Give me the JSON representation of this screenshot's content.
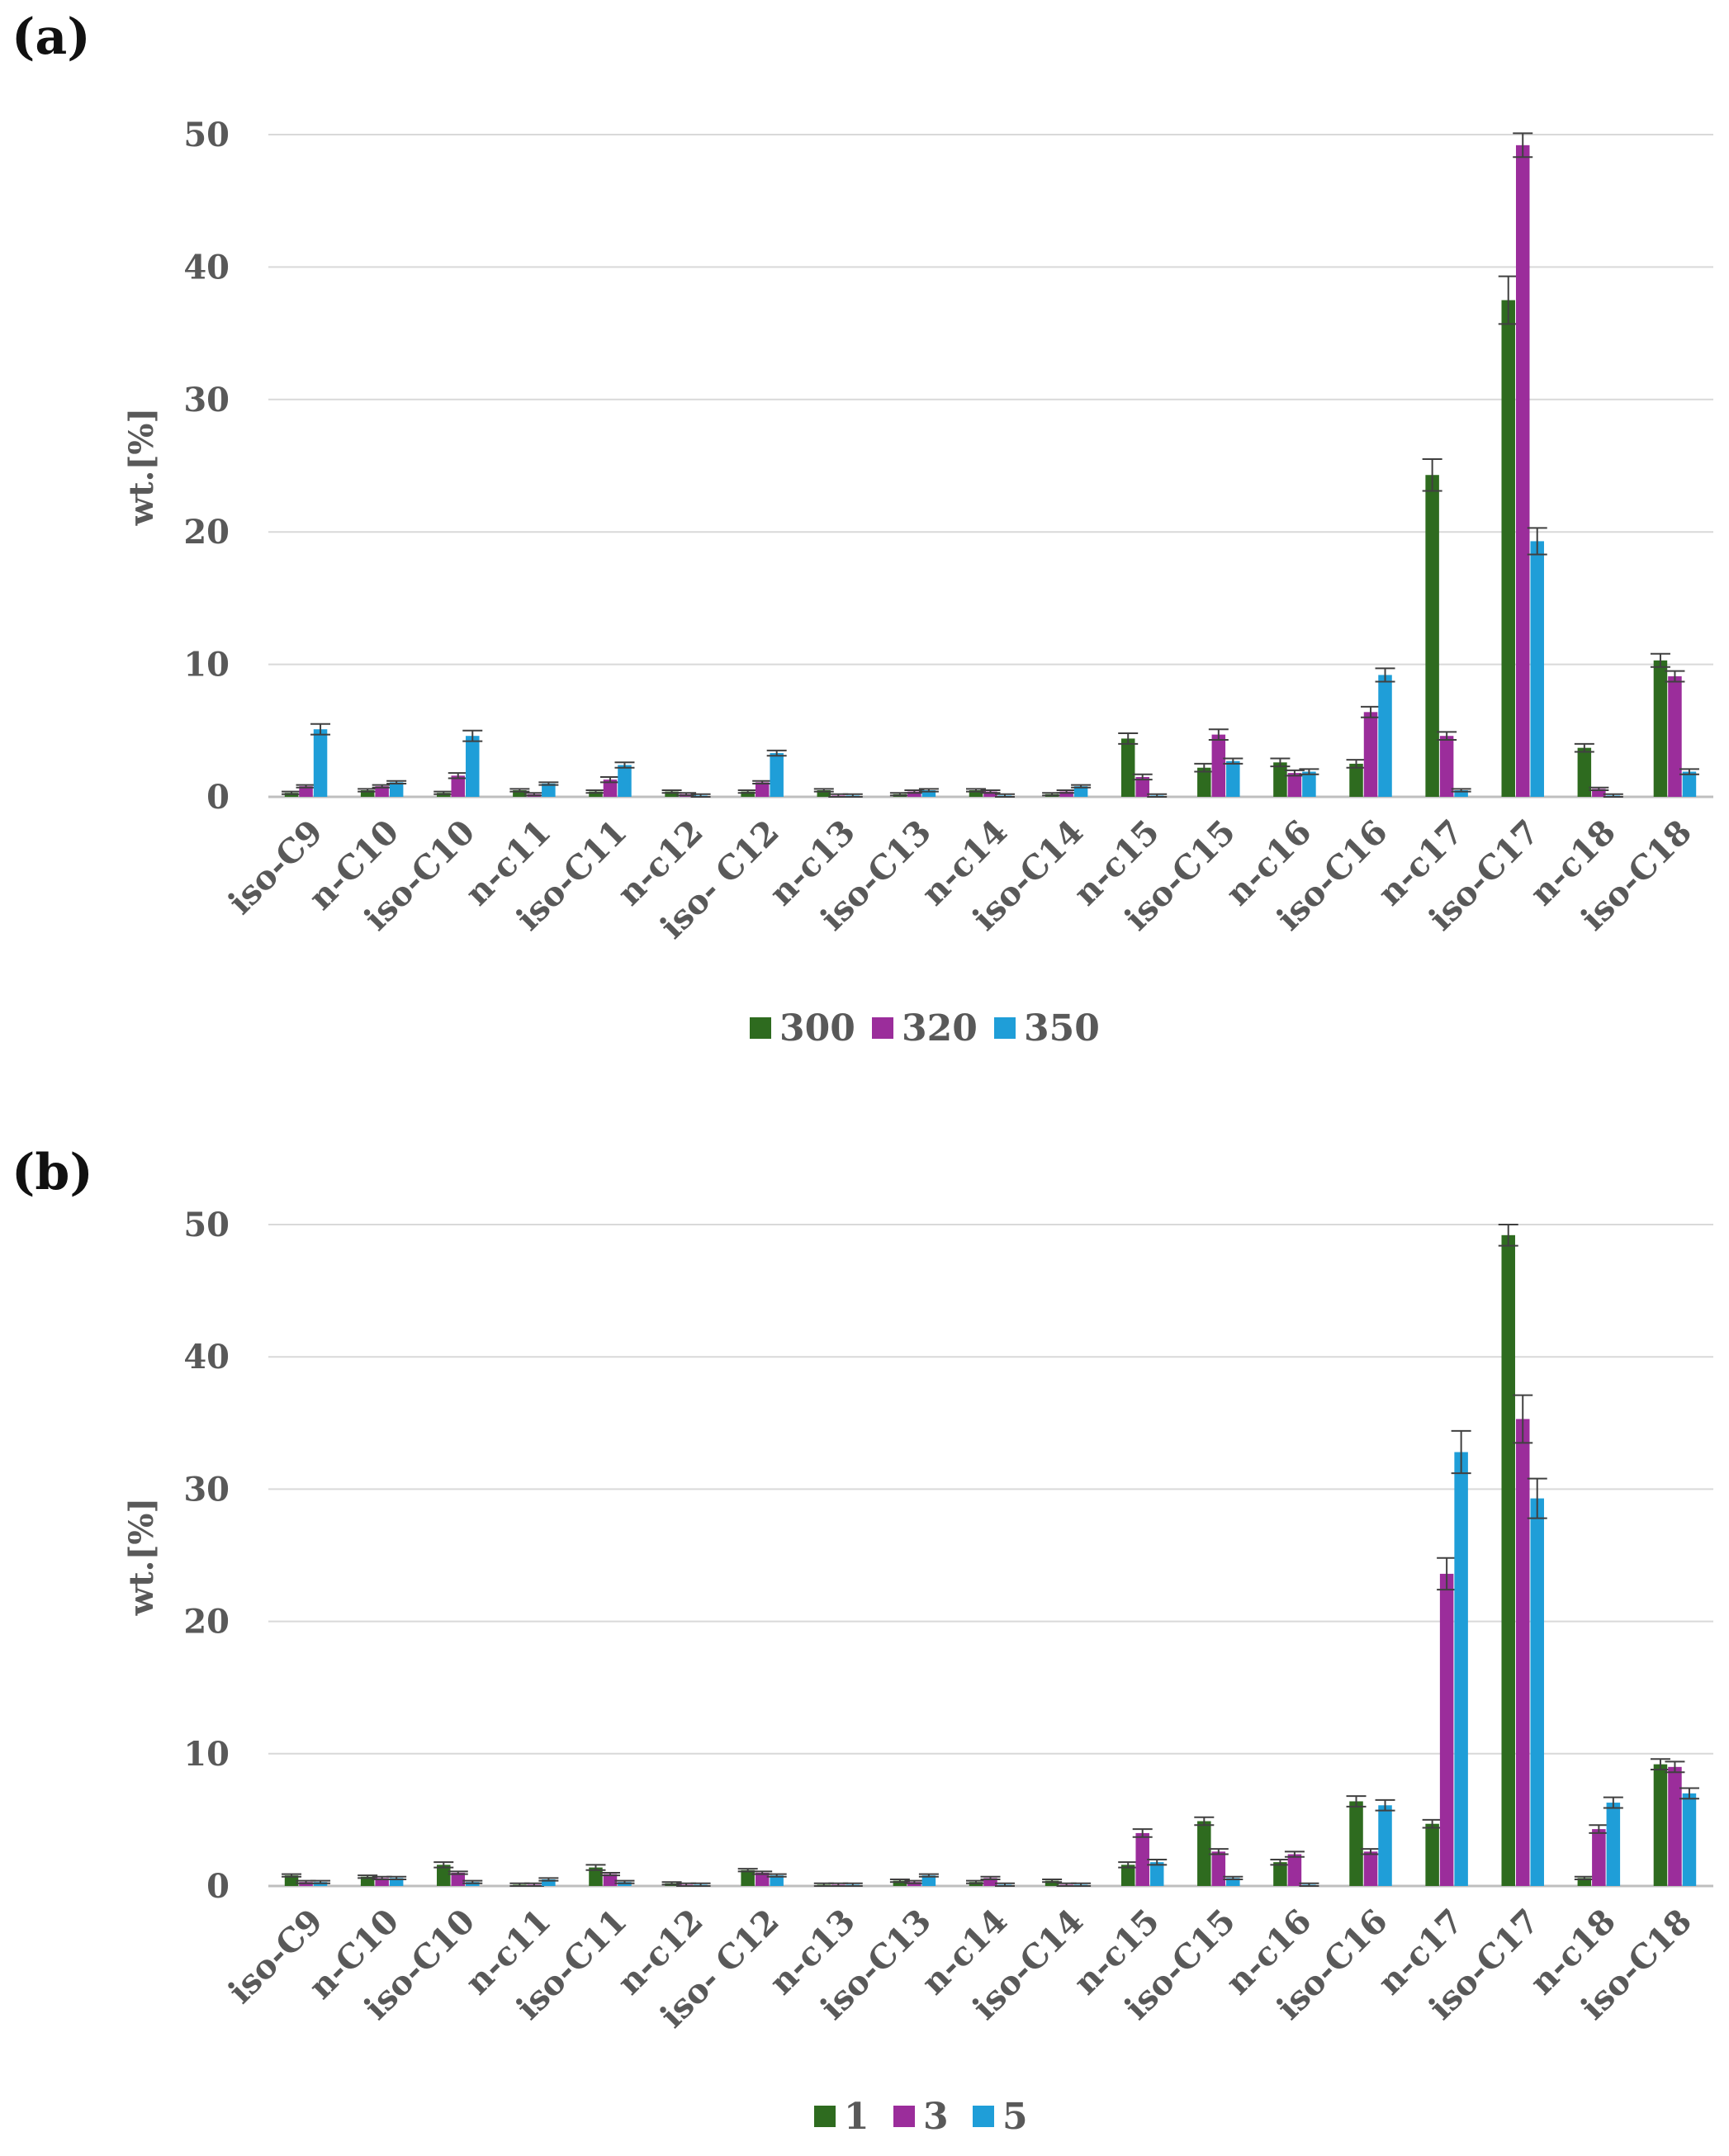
{
  "panels": [
    {
      "label": "(a)"
    },
    {
      "label": "(b)"
    }
  ],
  "chart_data": [
    {
      "type": "bar",
      "title": "",
      "xlabel": "",
      "ylabel": "wt.[%]",
      "ylim": [
        0,
        50
      ],
      "yticks": [
        0,
        10,
        20,
        30,
        40,
        50
      ],
      "grid": true,
      "legend": "bottom-center",
      "categories": [
        "iso-C9",
        "n-C10",
        "iso-C10",
        "n-c11",
        "iso-C11",
        "n-c12",
        "iso- C12",
        "n-c13",
        "iso-C13",
        "n-c14",
        "iso-C14",
        "n-c15",
        "iso-C15",
        "n-c16",
        "iso-C16",
        "n-c17",
        "iso-C17",
        "n-c18",
        "iso-C18"
      ],
      "series": [
        {
          "name": "300",
          "color": "#2e6b1f",
          "values": [
            0.3,
            0.5,
            0.3,
            0.5,
            0.4,
            0.4,
            0.4,
            0.5,
            0.2,
            0.5,
            0.2,
            4.4,
            2.2,
            2.6,
            2.5,
            24.3,
            37.5,
            3.7,
            10.3
          ],
          "errors": [
            0.1,
            0.1,
            0.1,
            0.1,
            0.1,
            0.1,
            0.1,
            0.1,
            0.1,
            0.1,
            0.1,
            0.4,
            0.3,
            0.3,
            0.3,
            1.2,
            1.8,
            0.3,
            0.5
          ]
        },
        {
          "name": "320",
          "color": "#9b2d9b",
          "values": [
            0.8,
            0.8,
            1.6,
            0.2,
            1.3,
            0.2,
            1.1,
            0.1,
            0.4,
            0.4,
            0.4,
            1.5,
            4.7,
            1.8,
            6.4,
            4.6,
            49.2,
            0.6,
            9.1
          ],
          "errors": [
            0.1,
            0.1,
            0.2,
            0.1,
            0.2,
            0.1,
            0.1,
            0.1,
            0.1,
            0.1,
            0.1,
            0.2,
            0.4,
            0.2,
            0.4,
            0.3,
            0.9,
            0.1,
            0.4
          ]
        },
        {
          "name": "350",
          "color": "#1f9ed8",
          "values": [
            5.1,
            1.1,
            4.6,
            1.0,
            2.4,
            0.1,
            3.3,
            0.1,
            0.5,
            0.1,
            0.8,
            0.1,
            2.7,
            1.9,
            9.2,
            0.5,
            19.3,
            0.1,
            1.9
          ],
          "errors": [
            0.4,
            0.1,
            0.4,
            0.1,
            0.2,
            0.1,
            0.2,
            0.1,
            0.1,
            0.1,
            0.1,
            0.1,
            0.2,
            0.2,
            0.5,
            0.1,
            1.0,
            0.1,
            0.2
          ]
        }
      ]
    },
    {
      "type": "bar",
      "title": "",
      "xlabel": "",
      "ylabel": "wt.[%]",
      "ylim": [
        0,
        50
      ],
      "yticks": [
        0,
        10,
        20,
        30,
        40,
        50
      ],
      "grid": true,
      "legend": "bottom-center",
      "categories": [
        "iso-C9",
        "n-C10",
        "iso-C10",
        "n-c11",
        "iso-C11",
        "n-c12",
        "iso- C12",
        "n-c13",
        "iso-C13",
        "n-c14",
        "iso-C14",
        "n-c15",
        "iso-C15",
        "n-c16",
        "iso-C16",
        "n-c17",
        "iso-C17",
        "n-c18",
        "iso-C18"
      ],
      "series": [
        {
          "name": "1",
          "color": "#2e6b1f",
          "values": [
            0.8,
            0.7,
            1.6,
            0.1,
            1.4,
            0.2,
            1.2,
            0.1,
            0.4,
            0.3,
            0.4,
            1.6,
            4.9,
            1.8,
            6.4,
            4.7,
            49.2,
            0.6,
            9.2
          ],
          "errors": [
            0.1,
            0.1,
            0.2,
            0.1,
            0.2,
            0.1,
            0.1,
            0.1,
            0.1,
            0.1,
            0.1,
            0.2,
            0.3,
            0.2,
            0.4,
            0.3,
            0.8,
            0.1,
            0.4
          ]
        },
        {
          "name": "3",
          "color": "#9b2d9b",
          "values": [
            0.3,
            0.6,
            1.0,
            0.1,
            0.9,
            0.1,
            1.0,
            0.1,
            0.3,
            0.6,
            0.1,
            4.0,
            2.6,
            2.4,
            2.6,
            23.6,
            35.3,
            4.3,
            9.0
          ],
          "errors": [
            0.1,
            0.1,
            0.1,
            0.1,
            0.1,
            0.1,
            0.1,
            0.1,
            0.1,
            0.1,
            0.1,
            0.3,
            0.2,
            0.2,
            0.2,
            1.2,
            1.8,
            0.3,
            0.4
          ]
        },
        {
          "name": "5",
          "color": "#1f9ed8",
          "values": [
            0.3,
            0.6,
            0.3,
            0.5,
            0.3,
            0.1,
            0.8,
            0.1,
            0.8,
            0.1,
            0.1,
            1.8,
            0.6,
            0.1,
            6.1,
            32.8,
            29.3,
            6.3,
            7.0
          ],
          "errors": [
            0.1,
            0.1,
            0.1,
            0.1,
            0.1,
            0.1,
            0.1,
            0.1,
            0.1,
            0.1,
            0.1,
            0.2,
            0.1,
            0.1,
            0.4,
            1.6,
            1.5,
            0.4,
            0.4
          ]
        }
      ]
    }
  ]
}
